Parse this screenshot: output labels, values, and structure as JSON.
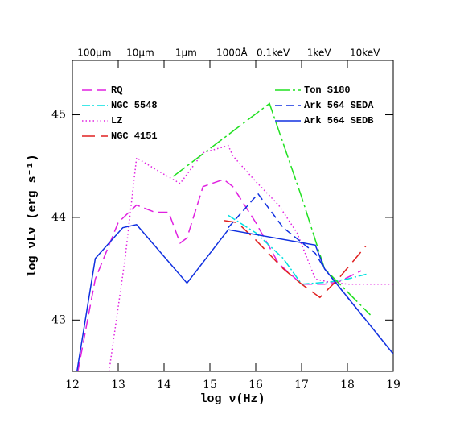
{
  "chart_data": {
    "type": "line",
    "x_label": "log ν(Hz)",
    "y_label": "log νLν (erg s⁻¹)",
    "xlim": [
      12,
      19
    ],
    "ylim": [
      42.5,
      45.53
    ],
    "xticks": [
      12,
      13,
      14,
      15,
      16,
      17,
      18,
      19
    ],
    "yticks": [
      43,
      44,
      45
    ],
    "x2ticks": [
      {
        "value": 12.48,
        "label": "100μm"
      },
      {
        "value": 13.48,
        "label": "10μm"
      },
      {
        "value": 14.48,
        "label": "1μm"
      },
      {
        "value": 15.48,
        "label": "1000Å"
      },
      {
        "value": 16.38,
        "label": "0.1keV"
      },
      {
        "value": 17.38,
        "label": "1keV"
      },
      {
        "value": 18.38,
        "label": "10keV"
      }
    ],
    "series": [
      {
        "name": "RQ",
        "color": "#e020e0",
        "x": [
          12.12,
          12.5,
          13.0,
          13.4,
          13.8,
          14.1,
          14.35,
          14.5,
          14.85,
          15.3,
          15.5,
          16.0,
          16.5,
          17.0,
          17.5,
          17.8,
          18.3
        ],
        "values": [
          42.5,
          43.4,
          43.95,
          44.12,
          44.05,
          44.05,
          43.75,
          43.8,
          44.3,
          44.37,
          44.3,
          43.95,
          43.55,
          43.35,
          43.35,
          43.37,
          43.48
        ]
      },
      {
        "name": "NGC 5548",
        "color": "#00e0e0",
        "x": [
          15.4,
          16.0,
          16.6,
          17.0,
          17.6,
          18.0,
          18.45
        ],
        "values": [
          44.02,
          43.85,
          43.6,
          43.35,
          43.37,
          43.4,
          43.45
        ]
      },
      {
        "name": "LZ",
        "color": "#e020e0",
        "x": [
          12.8,
          13.15,
          13.4,
          14.0,
          14.35,
          14.85,
          15.4,
          15.5,
          16.0,
          16.5,
          16.9,
          17.3,
          17.6,
          18.0,
          19.0
        ],
        "values": [
          42.5,
          43.6,
          44.58,
          44.42,
          44.33,
          44.63,
          44.7,
          44.6,
          44.35,
          44.12,
          43.85,
          43.4,
          43.37,
          43.35,
          43.35
        ]
      },
      {
        "name": "NGC 4151",
        "color": "#e02020",
        "x": [
          15.3,
          15.6,
          16.0,
          16.6,
          17.0,
          17.4,
          17.8,
          18.4
        ],
        "values": [
          43.97,
          43.95,
          43.78,
          43.5,
          43.35,
          43.22,
          43.4,
          43.72
        ]
      },
      {
        "name": "Ton S180",
        "color": "#20e020",
        "x": [
          14.2,
          16.3,
          17.0,
          17.5,
          18.5
        ],
        "values": [
          44.4,
          45.11,
          44.2,
          43.5,
          43.05
        ]
      },
      {
        "name": "Ark 564 SEDA",
        "color": "#1030e0",
        "x": [
          15.4,
          16.05,
          16.6,
          17.3,
          17.5,
          18.4
        ],
        "values": [
          43.9,
          44.23,
          43.9,
          43.65,
          43.5,
          43.0
        ]
      },
      {
        "name": "Ark 564 SEDB",
        "color": "#1030e0",
        "x": [
          12.1,
          12.5,
          13.1,
          13.4,
          14.5,
          15.4,
          17.3,
          17.5,
          19.0
        ],
        "values": [
          42.5,
          43.6,
          43.9,
          43.93,
          43.36,
          43.88,
          43.73,
          43.5,
          42.67
        ]
      }
    ]
  }
}
